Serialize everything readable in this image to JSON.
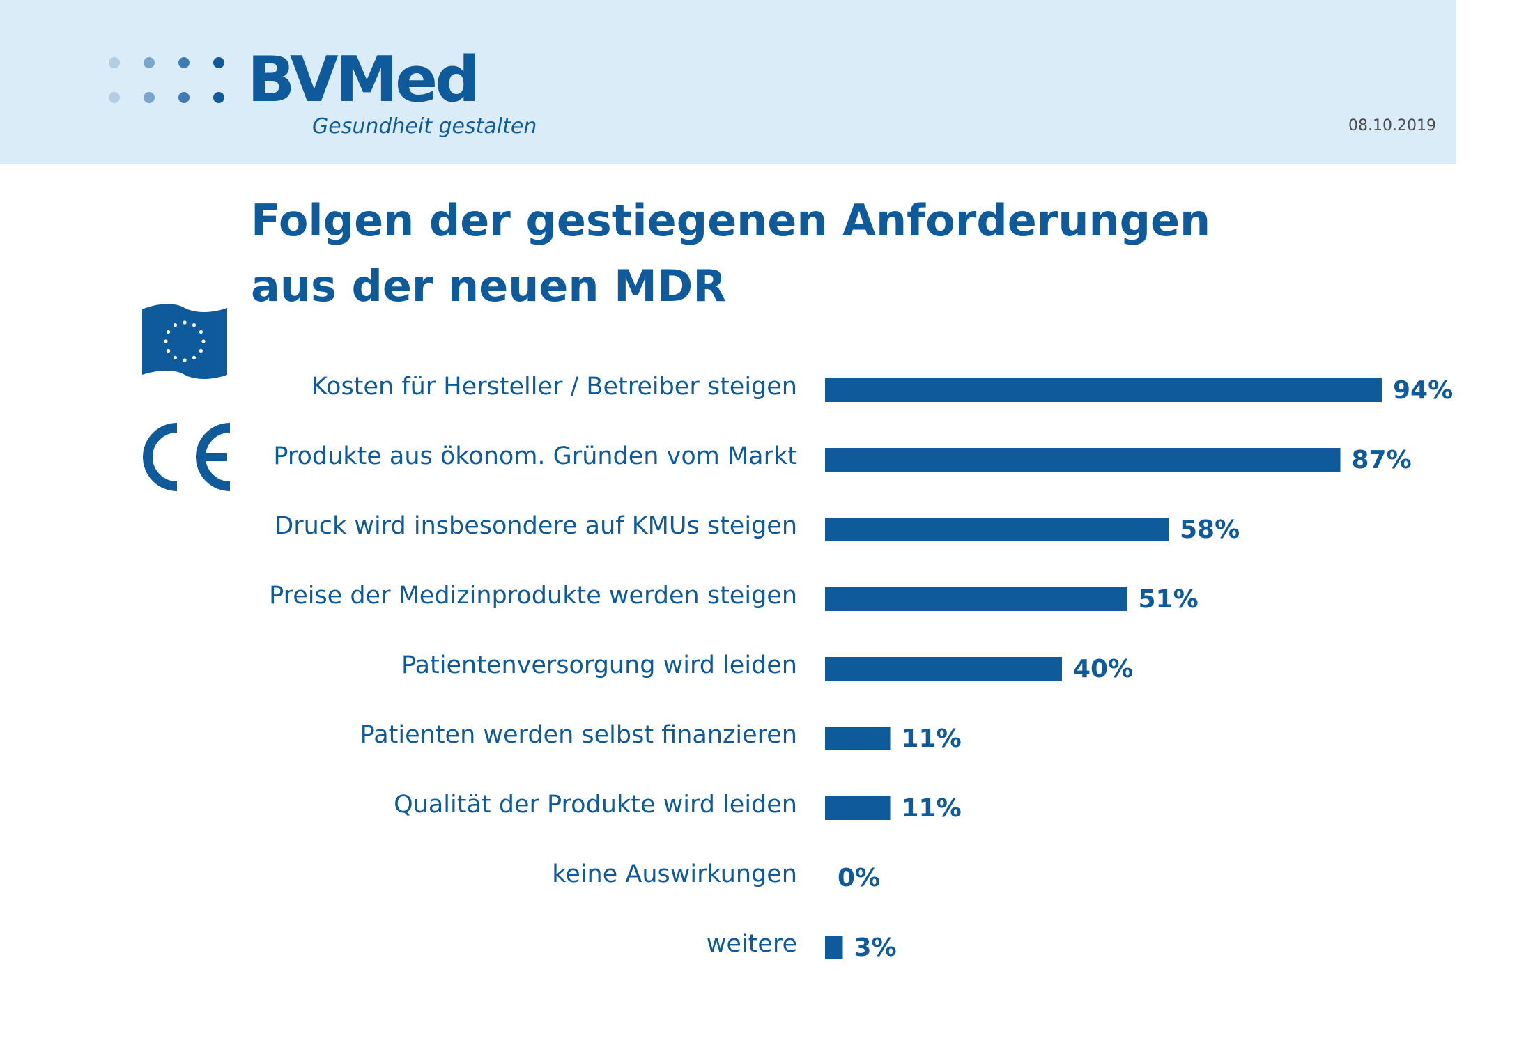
{
  "header": {
    "logo_text": "BVMed",
    "tagline": "Gesundheit gestalten",
    "date": "08.10.2019"
  },
  "colors": {
    "accent": "#0e5a9b",
    "header_bg": "#d9ecf8",
    "dot_light": "#b3cde3",
    "dot_mid": "#7aa6cc",
    "dot_dark": "#3f7cb3"
  },
  "icons": [
    "eu-flag-icon",
    "ce-mark-icon"
  ],
  "chart_data": {
    "type": "bar",
    "orientation": "horizontal",
    "title": [
      "Folgen der gestiegenen Anforderungen",
      "aus der neuen MDR"
    ],
    "categories": [
      "Kosten für Hersteller / Betreiber steigen",
      "Produkte aus ökonom. Gründen vom Markt",
      "Druck wird insbesondere auf KMUs steigen",
      "Preise der Medizinprodukte werden steigen",
      "Patientenversorgung wird leiden",
      "Patienten werden selbst finanzieren",
      "Qualität der Produkte wird leiden",
      "keine Auswirkungen",
      "weitere"
    ],
    "values": [
      94,
      87,
      58,
      51,
      40,
      11,
      11,
      0,
      3
    ],
    "value_labels": [
      "94%",
      "87%",
      "58%",
      "51%",
      "40%",
      "11%",
      "11%",
      "0%",
      "3%"
    ],
    "unit": "%",
    "xlim": [
      0,
      100
    ],
    "grid": false,
    "legend": "none"
  }
}
